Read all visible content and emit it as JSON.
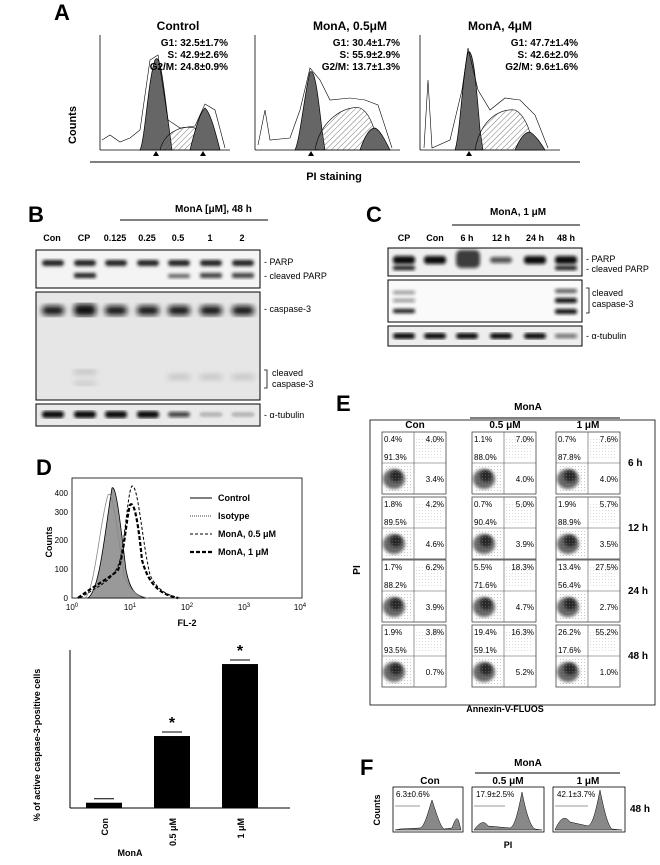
{
  "panel_labels": {
    "A": "A",
    "B": "B",
    "C": "C",
    "D": "D",
    "E": "E",
    "F": "F"
  },
  "panelA": {
    "ylabel": "Counts",
    "xlabel": "PI staining",
    "plots": [
      {
        "title": "Control",
        "g1": "G1: 32.5±1.7%",
        "s": "S: 42.9±2.6%",
        "g2m": "G2/M: 24.8±0.9%"
      },
      {
        "title": "MonA, 0.5μM",
        "g1": "G1: 30.4±1.7%",
        "s": "S: 55.9±2.9%",
        "g2m": "G2/M: 13.7±1.3%"
      },
      {
        "title": "MonA, 4μM",
        "g1": "G1: 47.7±1.4%",
        "s": "S: 42.6±2.0%",
        "g2m": "G2/M:   9.6±1.6%"
      }
    ]
  },
  "panelB": {
    "header": "MonA [μM], 48 h",
    "lanes": [
      "Con",
      "CP",
      "0.125",
      "0.25",
      "0.5",
      "1",
      "2"
    ],
    "labels": {
      "parp": "- PARP",
      "cleaved_parp": "- cleaved PARP",
      "caspase3": "- caspase-3",
      "cleaved": "cleaved",
      "caspase3b": "caspase-3",
      "tubulin": "- α-tubulin"
    }
  },
  "panelC": {
    "header": "MonA, 1 μM",
    "lanes": [
      "CP",
      "Con",
      "6 h",
      "12 h",
      "24 h",
      "48 h"
    ],
    "labels": {
      "parp": "- PARP",
      "cleaved_parp": "- cleaved PARP",
      "cleaved": "cleaved",
      "caspase3": "caspase-3",
      "tubulin": "- α-tubulin"
    }
  },
  "panelD": {
    "histogram": {
      "ylabel": "Counts",
      "xlabel": "FL-2",
      "yticks": [
        "0",
        "100",
        "200",
        "300",
        "400"
      ],
      "xticks": [
        "10",
        "10",
        "10",
        "10",
        "10"
      ],
      "xexp": [
        "0",
        "1",
        "2",
        "3",
        "4"
      ],
      "legend": [
        "Control",
        "Isotype",
        "MonA, 0.5 μM",
        "MonA, 1 μM"
      ]
    },
    "chart_data": {
      "type": "bar",
      "categories": [
        "Con",
        "0.5 μM",
        "1 μM"
      ],
      "values": [
        1.5,
        20.5,
        41
      ],
      "ylabel": "% of active caspase-3-positive cells",
      "xlabel": "MonA",
      "ylim": [
        0,
        45
      ],
      "significance": [
        "",
        "*",
        "*"
      ],
      "bar_color": "#000000"
    }
  },
  "panelE": {
    "ylabel": "PI",
    "xlabel": "Annexin-V-FLUOS",
    "col_headers": [
      "Con",
      "0.5 μM",
      "1 μM"
    ],
    "group": "MonA",
    "rows": [
      {
        "time": "6 h",
        "cells": [
          [
            "0.4%",
            "4.0%",
            "91.3%",
            "3.4%"
          ],
          [
            "1.1%",
            "7.0%",
            "88.0%",
            "4.0%"
          ],
          [
            "0.7%",
            "7.6%",
            "87.8%",
            "4.0%"
          ]
        ]
      },
      {
        "time": "12 h",
        "cells": [
          [
            "1.8%",
            "4.2%",
            "89.5%",
            "4.6%"
          ],
          [
            "0.7%",
            "5.0%",
            "90.4%",
            "3.9%"
          ],
          [
            "1.9%",
            "5.7%",
            "88.9%",
            "3.5%"
          ]
        ]
      },
      {
        "time": "24 h",
        "cells": [
          [
            "1.7%",
            "6.2%",
            "88.2%",
            "3.9%"
          ],
          [
            "5.5%",
            "18.3%",
            "71.6%",
            "4.7%"
          ],
          [
            "13.4%",
            "27.5%",
            "56.4%",
            "2.7%"
          ]
        ]
      },
      {
        "time": "48 h",
        "cells": [
          [
            "1.9%",
            "3.8%",
            "93.5%",
            "0.7%"
          ],
          [
            "19.4%",
            "16.3%",
            "59.1%",
            "5.2%"
          ],
          [
            "26.2%",
            "55.2%",
            "17.6%",
            "1.0%"
          ]
        ]
      }
    ]
  },
  "panelF": {
    "ylabel": "Counts",
    "xlabel": "PI",
    "col_headers": [
      "Con",
      "0.5 μM",
      "1 μM"
    ],
    "group": "MonA",
    "time": "48 h",
    "values": [
      "6.3±0.6%",
      "17.9±2.5%",
      "42.1±3.7%"
    ]
  }
}
